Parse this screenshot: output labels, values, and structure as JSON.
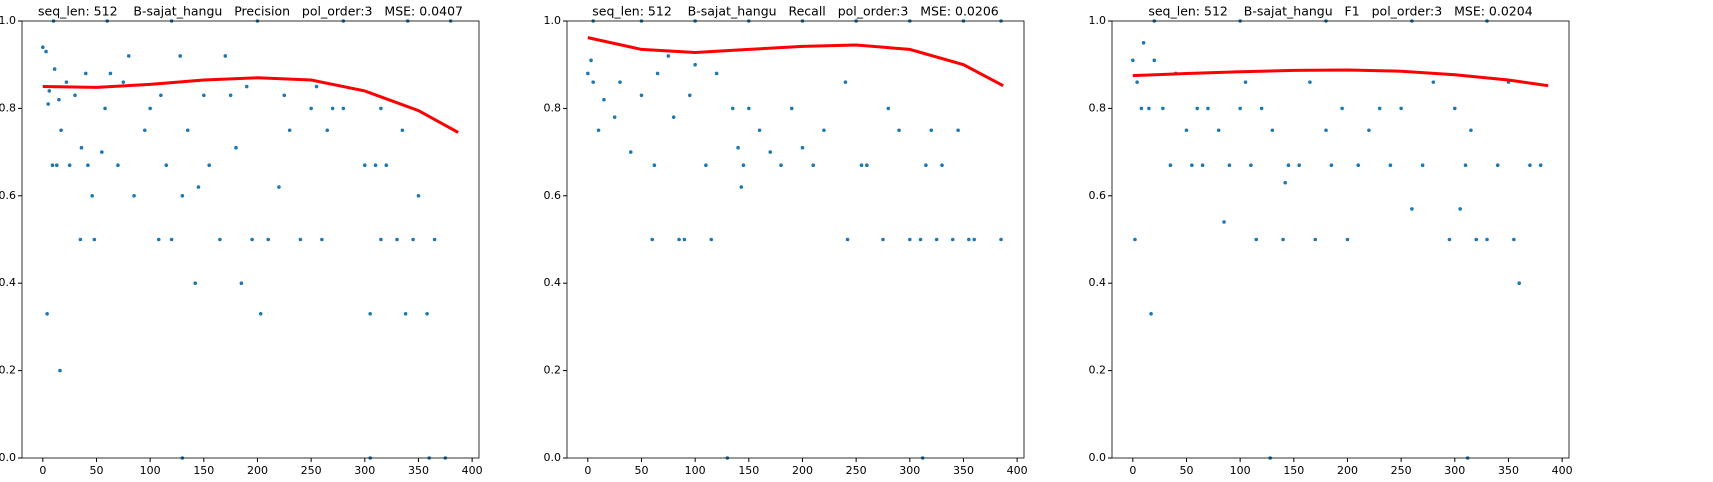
{
  "chart_data": [
    {
      "type": "scatter",
      "title": "seq_len: 512    B-sajat_hangu   Precision   pol_order:3   MSE: 0.0407",
      "xlim": [
        -19.4,
        406.4
      ],
      "ylim": [
        0,
        1
      ],
      "xticks": [
        0,
        50,
        100,
        150,
        200,
        250,
        300,
        350,
        400
      ],
      "yticks": [
        {
          "value": 0,
          "label": "0.0"
        },
        {
          "value": 0.2,
          "label": "0.2"
        },
        {
          "value": 0.4,
          "label": "0.4"
        },
        {
          "value": 0.6,
          "label": "0.6"
        },
        {
          "value": 0.8,
          "label": "0.8"
        },
        {
          "value": 1,
          "label": "1.0"
        }
      ],
      "series": [
        {
          "type": "scatter",
          "color": "#1f77b4",
          "x": [
            0,
            3,
            4,
            5,
            6,
            9,
            11,
            13,
            15,
            16,
            17,
            22,
            25,
            30,
            35,
            36,
            40,
            42,
            46,
            48,
            55,
            58,
            63,
            70,
            75,
            80,
            85,
            95,
            100,
            108,
            115,
            120,
            130,
            128,
            135,
            142,
            145,
            155,
            165,
            170,
            180,
            185,
            195,
            203,
            210,
            220,
            230,
            240,
            250,
            260,
            265,
            270,
            300,
            305,
            310,
            315,
            320,
            330,
            338,
            345,
            350,
            358,
            365,
            130,
            305,
            360,
            375,
            10,
            60,
            120,
            200,
            280,
            340,
            380,
            110,
            150,
            175,
            190,
            225,
            255,
            280,
            315,
            335
          ],
          "values": [
            0.94,
            0.93,
            0.33,
            0.81,
            0.84,
            0.67,
            0.89,
            0.67,
            0.82,
            0.2,
            0.75,
            0.86,
            0.67,
            0.83,
            0.5,
            0.71,
            0.88,
            0.67,
            0.6,
            0.5,
            0.7,
            0.8,
            0.88,
            0.67,
            0.86,
            0.92,
            0.6,
            0.75,
            0.8,
            0.5,
            0.67,
            0.5,
            0.6,
            0.92,
            0.75,
            0.4,
            0.62,
            0.67,
            0.5,
            0.92,
            0.71,
            0.4,
            0.5,
            0.33,
            0.5,
            0.62,
            0.75,
            0.5,
            0.8,
            0.5,
            0.75,
            0.8,
            0.67,
            0.33,
            0.67,
            0.5,
            0.67,
            0.5,
            0.33,
            0.5,
            0.6,
            0.33,
            0.5,
            0,
            0,
            0,
            0,
            1,
            1,
            1,
            1,
            1,
            1,
            1,
            0.83,
            0.83,
            0.83,
            0.85,
            0.83,
            0.85,
            0.8,
            0.8,
            0.75
          ]
        },
        {
          "type": "line",
          "color": "#ff0000",
          "x": [
            0,
            50,
            100,
            150,
            200,
            250,
            300,
            350,
            387
          ],
          "values": [
            0.85,
            0.848,
            0.855,
            0.865,
            0.87,
            0.865,
            0.84,
            0.795,
            0.745
          ]
        }
      ]
    },
    {
      "type": "scatter",
      "title": "seq_len: 512    B-sajat_hangu   Recall   pol_order:3   MSE: 0.0206",
      "xlim": [
        -19.4,
        406.4
      ],
      "ylim": [
        0,
        1
      ],
      "xticks": [
        0,
        50,
        100,
        150,
        200,
        250,
        300,
        350,
        400
      ],
      "yticks": [
        {
          "value": 0,
          "label": "0.0"
        },
        {
          "value": 0.2,
          "label": "0.2"
        },
        {
          "value": 0.4,
          "label": "0.4"
        },
        {
          "value": 0.6,
          "label": "0.6"
        },
        {
          "value": 0.8,
          "label": "0.8"
        },
        {
          "value": 1,
          "label": "1.0"
        }
      ],
      "series": [
        {
          "type": "scatter",
          "color": "#1f77b4",
          "x": [
            0,
            3,
            5,
            10,
            15,
            25,
            30,
            40,
            50,
            60,
            62,
            65,
            75,
            80,
            85,
            90,
            95,
            100,
            110,
            115,
            120,
            130,
            135,
            140,
            143,
            145,
            150,
            160,
            170,
            180,
            190,
            200,
            210,
            220,
            240,
            242,
            255,
            260,
            275,
            280,
            290,
            300,
            310,
            315,
            320,
            325,
            330,
            340,
            345,
            355,
            360,
            385,
            312,
            5,
            50,
            100,
            150,
            200,
            250,
            300,
            350,
            385
          ],
          "values": [
            0.88,
            0.91,
            0.86,
            0.75,
            0.82,
            0.78,
            0.86,
            0.7,
            0.83,
            0.5,
            0.67,
            0.88,
            0.92,
            0.78,
            0.5,
            0.5,
            0.83,
            0.9,
            0.67,
            0.5,
            0.88,
            0,
            0.8,
            0.71,
            0.62,
            0.67,
            0.8,
            0.75,
            0.7,
            0.67,
            0.8,
            0.71,
            0.67,
            0.75,
            0.86,
            0.5,
            0.67,
            0.67,
            0.5,
            0.8,
            0.75,
            0.5,
            0.5,
            0.67,
            0.75,
            0.5,
            0.67,
            0.5,
            0.75,
            0.5,
            0.5,
            0.5,
            0,
            1,
            1,
            1,
            1,
            1,
            1,
            1,
            1,
            1
          ]
        },
        {
          "type": "line",
          "color": "#ff0000",
          "x": [
            0,
            50,
            100,
            150,
            200,
            250,
            300,
            350,
            387
          ],
          "values": [
            0.962,
            0.935,
            0.928,
            0.935,
            0.942,
            0.945,
            0.935,
            0.9,
            0.852
          ]
        }
      ]
    },
    {
      "type": "scatter",
      "title": "seq_len: 512    B-sajat_hangu   F1   pol_order:3   MSE: 0.0204",
      "xlim": [
        -19.4,
        406.4
      ],
      "ylim": [
        0,
        1
      ],
      "xticks": [
        0,
        50,
        100,
        150,
        200,
        250,
        300,
        350,
        400
      ],
      "yticks": [
        {
          "value": 0,
          "label": "0.0"
        },
        {
          "value": 0.2,
          "label": "0.2"
        },
        {
          "value": 0.4,
          "label": "0.4"
        },
        {
          "value": 0.6,
          "label": "0.6"
        },
        {
          "value": 0.8,
          "label": "0.8"
        },
        {
          "value": 1,
          "label": "1.0"
        }
      ],
      "series": [
        {
          "type": "scatter",
          "color": "#1f77b4",
          "x": [
            0,
            2,
            4,
            8,
            10,
            15,
            17,
            20,
            28,
            35,
            40,
            50,
            55,
            60,
            65,
            70,
            80,
            85,
            90,
            100,
            105,
            110,
            115,
            120,
            128,
            130,
            140,
            142,
            145,
            155,
            165,
            170,
            180,
            185,
            195,
            200,
            210,
            220,
            230,
            240,
            250,
            260,
            270,
            280,
            295,
            300,
            305,
            310,
            315,
            320,
            330,
            340,
            350,
            355,
            360,
            370,
            380,
            312,
            20,
            100,
            180,
            260,
            330
          ],
          "values": [
            0.91,
            0.5,
            0.86,
            0.8,
            0.95,
            0.8,
            0.33,
            0.91,
            0.8,
            0.67,
            0.88,
            0.75,
            0.67,
            0.8,
            0.67,
            0.8,
            0.75,
            0.54,
            0.67,
            0.8,
            0.86,
            0.67,
            0.5,
            0.8,
            0,
            0.75,
            0.5,
            0.63,
            0.67,
            0.67,
            0.86,
            0.5,
            0.75,
            0.67,
            0.8,
            0.5,
            0.67,
            0.75,
            0.8,
            0.67,
            0.8,
            0.57,
            0.67,
            0.86,
            0.5,
            0.8,
            0.57,
            0.67,
            0.75,
            0.5,
            0.5,
            0.67,
            0.86,
            0.5,
            0.4,
            0.67,
            0.67,
            0,
            1,
            1,
            1,
            1,
            1
          ]
        },
        {
          "type": "line",
          "color": "#ff0000",
          "x": [
            0,
            50,
            100,
            150,
            200,
            250,
            300,
            350,
            387
          ],
          "values": [
            0.875,
            0.88,
            0.884,
            0.887,
            0.888,
            0.885,
            0.877,
            0.865,
            0.852
          ]
        }
      ]
    }
  ]
}
